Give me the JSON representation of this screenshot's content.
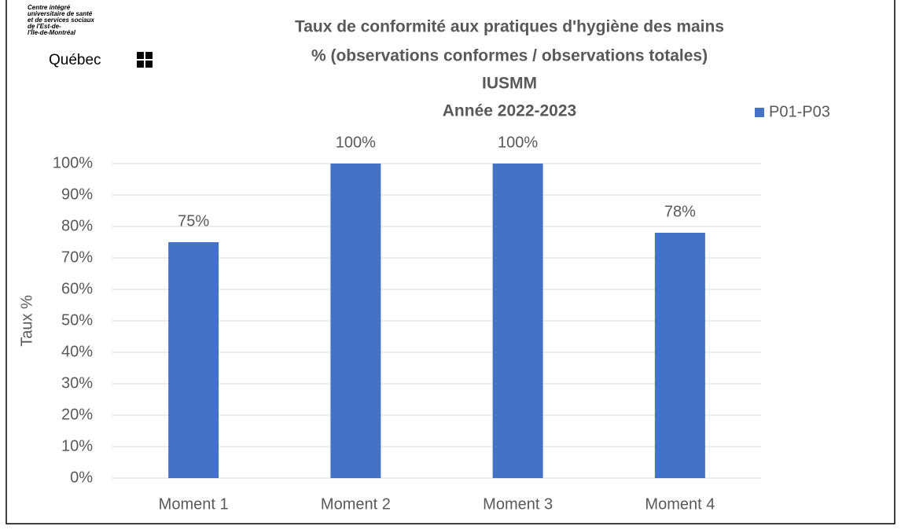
{
  "logo": {
    "lines": [
      "Centre intégré",
      "universitaire de santé",
      "et de services sociaux",
      "de l'Est-de-",
      "l'Île-de-Montréal"
    ],
    "name": "Québec"
  },
  "chart_data": {
    "type": "bar",
    "title": "Taux de conformité aux pratiques d'hygiène des mains",
    "subtitle": [
      "% (observations conformes / observations totales)",
      "IUSMM",
      "Année 2022-2023"
    ],
    "y_label": "Taux %",
    "categories": [
      "Moment 1",
      "Moment 2",
      "Moment 3",
      "Moment 4"
    ],
    "series": [
      {
        "name": "P01-P03",
        "color": "#4472c4",
        "values": [
          75,
          100,
          100,
          78
        ],
        "value_labels": [
          "75%",
          "100%",
          "100%",
          "78%"
        ]
      }
    ],
    "ylim": [
      0,
      100
    ],
    "yticks": [
      {
        "value": 0,
        "label": "0%"
      },
      {
        "value": 10,
        "label": "10%"
      },
      {
        "value": 20,
        "label": "20%"
      },
      {
        "value": 30,
        "label": "30%"
      },
      {
        "value": 40,
        "label": "40%"
      },
      {
        "value": 50,
        "label": "50%"
      },
      {
        "value": 60,
        "label": "60%"
      },
      {
        "value": 70,
        "label": "70%"
      },
      {
        "value": 80,
        "label": "80%"
      },
      {
        "value": 90,
        "label": "90%"
      },
      {
        "value": 100,
        "label": "100%"
      }
    ],
    "grid": true,
    "legend": "top-right"
  }
}
